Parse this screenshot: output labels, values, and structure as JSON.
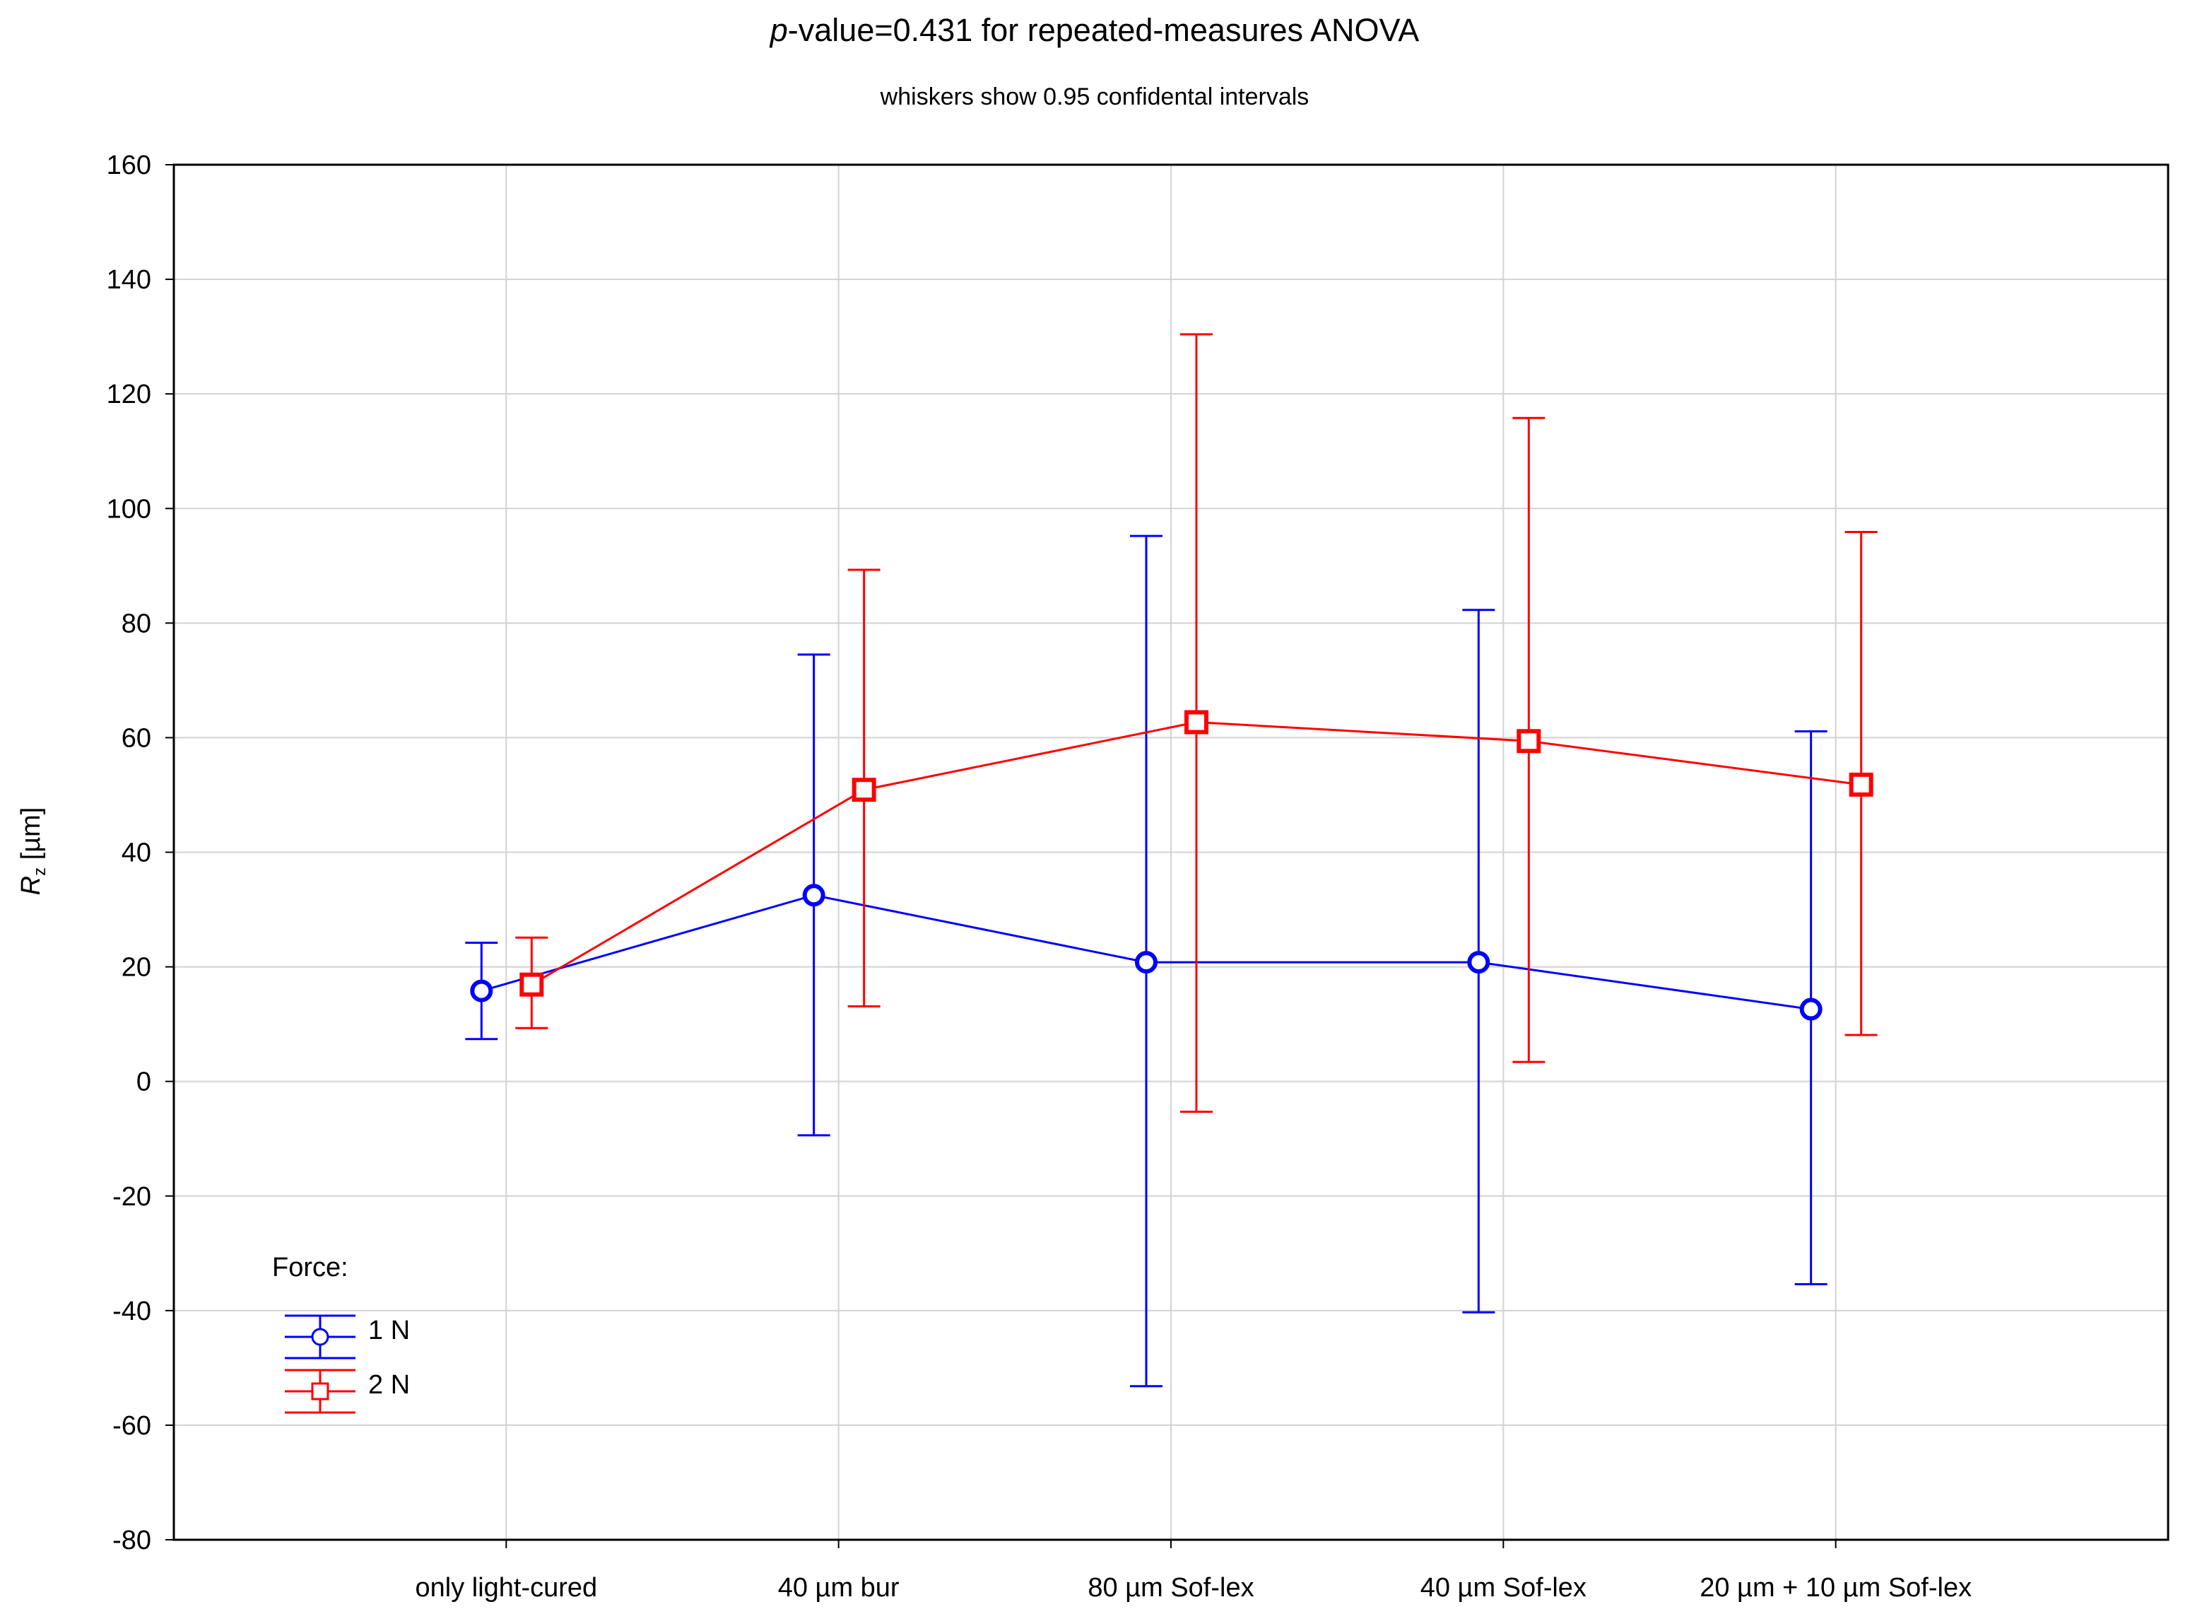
{
  "chart_data": {
    "type": "line",
    "title_italic": "p",
    "title_rest": "-value=0.431 for repeated-measures ANOVA",
    "subtitle": "whiskers show 0.95 confidental intervals",
    "xlabel": "",
    "ylabel_main": "R",
    "ylabel_sub": "z",
    "ylabel_unit": " [µm]",
    "ylim": [
      -80,
      160
    ],
    "yticks": [
      -80,
      -60,
      -40,
      -20,
      0,
      20,
      40,
      60,
      80,
      100,
      120,
      140,
      160
    ],
    "grid": true,
    "categories": [
      "only light-cured",
      "40 µm bur",
      "80 µm Sof-lex",
      "40 µm Sof-lex",
      "20 µm + 10 µm Sof-lex"
    ],
    "legend": {
      "title": "Force:",
      "position": "bottom-left"
    },
    "series": [
      {
        "name": "1 N",
        "color": "#0000ff",
        "marker": "circle",
        "values": [
          15.8,
          32.5,
          20.8,
          20.8,
          12.6
        ],
        "ci_low": [
          7.4,
          -9.4,
          -53.2,
          -40.3,
          -35.4
        ],
        "ci_high": [
          24.2,
          74.5,
          95.2,
          82.3,
          61.1
        ]
      },
      {
        "name": "2 N",
        "color": "#ff0000",
        "marker": "square",
        "values": [
          16.9,
          50.9,
          62.7,
          59.4,
          51.8
        ],
        "ci_low": [
          9.3,
          13.1,
          -5.3,
          3.4,
          8.1
        ],
        "ci_high": [
          25.1,
          89.3,
          130.4,
          115.8,
          95.9
        ]
      }
    ]
  }
}
